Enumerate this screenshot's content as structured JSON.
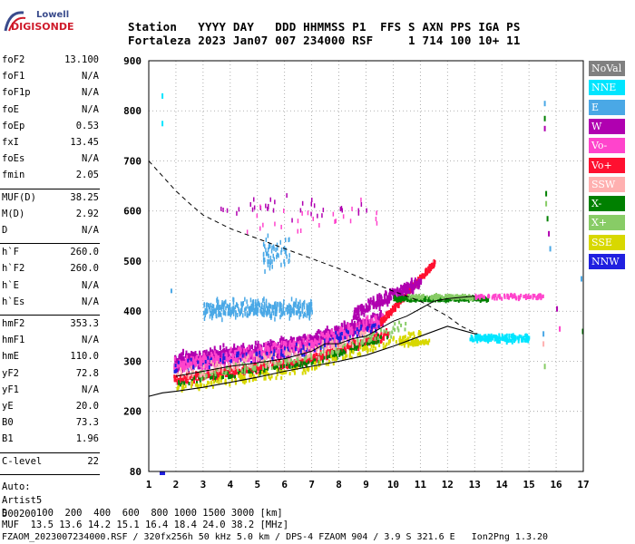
{
  "logo": {
    "line1": "Lowell",
    "line2": "DIGISONDE"
  },
  "header": {
    "line1": "Station   YYYY DAY   DDD HHMMSS P1  FFS S AXN PPS IGA PS",
    "line2": "Fortaleza 2023 Jan07 007 234000 RSF     1 714 100 10+ 11"
  },
  "params": {
    "group1": [
      {
        "key": "foF2",
        "value": "13.100"
      },
      {
        "key": "foF1",
        "value": "N/A"
      },
      {
        "key": "foF1p",
        "value": "N/A"
      },
      {
        "key": "foE",
        "value": "N/A"
      },
      {
        "key": "foEp",
        "value": "0.53"
      },
      {
        "key": "fxI",
        "value": "13.45"
      },
      {
        "key": "foEs",
        "value": "N/A"
      },
      {
        "key": "fmin",
        "value": "2.05"
      }
    ],
    "group2": [
      {
        "key": "MUF(D)",
        "value": "38.25"
      },
      {
        "key": "M(D)",
        "value": "2.92"
      },
      {
        "key": "D",
        "value": "N/A"
      }
    ],
    "group3": [
      {
        "key": "h`F",
        "value": "260.0"
      },
      {
        "key": "h`F2",
        "value": "260.0"
      },
      {
        "key": "h`E",
        "value": "N/A"
      },
      {
        "key": "h`Es",
        "value": "N/A"
      }
    ],
    "group4": [
      {
        "key": "hmF2",
        "value": "353.3"
      },
      {
        "key": "hmF1",
        "value": "N/A"
      },
      {
        "key": "hmE",
        "value": "110.0"
      },
      {
        "key": "yF2",
        "value": "72.8"
      },
      {
        "key": "yF1",
        "value": "N/A"
      },
      {
        "key": "yE",
        "value": "20.0"
      },
      {
        "key": "B0",
        "value": "73.3"
      },
      {
        "key": "B1",
        "value": "1.96"
      }
    ],
    "clevel": {
      "key": "C-level",
      "value": "22"
    },
    "auto": [
      "Auto:",
      "Artist5",
      "500200"
    ]
  },
  "legend": [
    {
      "label": "NoVal",
      "color": "#808080"
    },
    {
      "label": "NNE",
      "color": "#00e5ff"
    },
    {
      "label": "E",
      "color": "#4aa8e6"
    },
    {
      "label": "W",
      "color": "#b000b0"
    },
    {
      "label": "Vo-",
      "color": "#ff44cc"
    },
    {
      "label": "Vo+",
      "color": "#ff1030"
    },
    {
      "label": "SSW",
      "color": "#ffb0b0"
    },
    {
      "label": "X-",
      "color": "#008000"
    },
    {
      "label": "X+",
      "color": "#88cc66"
    },
    {
      "label": "SSE",
      "color": "#d8d800"
    },
    {
      "label": "NNW",
      "color": "#2020e0"
    }
  ],
  "footer": {
    "line1": "D     100  200  400  600  800 1000 1500 3000 [km]",
    "line2": "MUF  13.5 13.6 14.2 15.1 16.4 18.4 24.0 38.2 [MHz]",
    "line3": "FZAOM_2023007234000.RSF / 320fx256h 50 kHz 5.0 km / DPS-4 FZAOM 904 / 3.9 S 321.6 E   Ion2Png 1.3.20"
  },
  "chart_data": {
    "type": "scatter",
    "xlim": [
      1,
      17
    ],
    "ylim": [
      80,
      900
    ],
    "x_ticks": [
      "1",
      "2",
      "3",
      "4",
      "5",
      "6",
      "7",
      "8",
      "9",
      "10",
      "11",
      "12",
      "13",
      "14",
      "15",
      "16",
      "17"
    ],
    "y_ticks": [
      "80",
      "200",
      "300",
      "400",
      "500",
      "600",
      "700",
      "800",
      "900"
    ],
    "grid": true,
    "dashed_curve": {
      "x": [
        1.0,
        1.5,
        2.0,
        2.5,
        3.0,
        4.0,
        5.0,
        6.0,
        7.0,
        8.0,
        9.0,
        10.0,
        11.0,
        12.0,
        12.5,
        13.1
      ],
      "y": [
        700,
        670,
        640,
        615,
        592,
        565,
        545,
        525,
        505,
        485,
        462,
        440,
        420,
        390,
        370,
        355
      ]
    },
    "solid_curve": {
      "x": [
        1.0,
        1.5,
        2.0,
        3.0,
        4.0,
        5.0,
        6.0,
        7.0,
        8.0,
        9.0,
        10.0,
        11.0,
        12.0,
        13.0,
        13.1
      ],
      "y": [
        230,
        237,
        240,
        248,
        258,
        268,
        280,
        290,
        300,
        312,
        330,
        350,
        370,
        355,
        355
      ]
    },
    "trace_line": {
      "x": [
        2.0,
        3.0,
        4.0,
        5.0,
        6.0,
        7.0,
        7.5,
        8.0,
        8.5,
        9.0,
        9.5,
        10.0,
        10.5,
        11.0,
        11.5,
        12.0,
        13.0
      ],
      "y": [
        270,
        280,
        290,
        297,
        305,
        320,
        335,
        335,
        345,
        350,
        365,
        380,
        390,
        405,
        420,
        425,
        430
      ]
    }
  }
}
